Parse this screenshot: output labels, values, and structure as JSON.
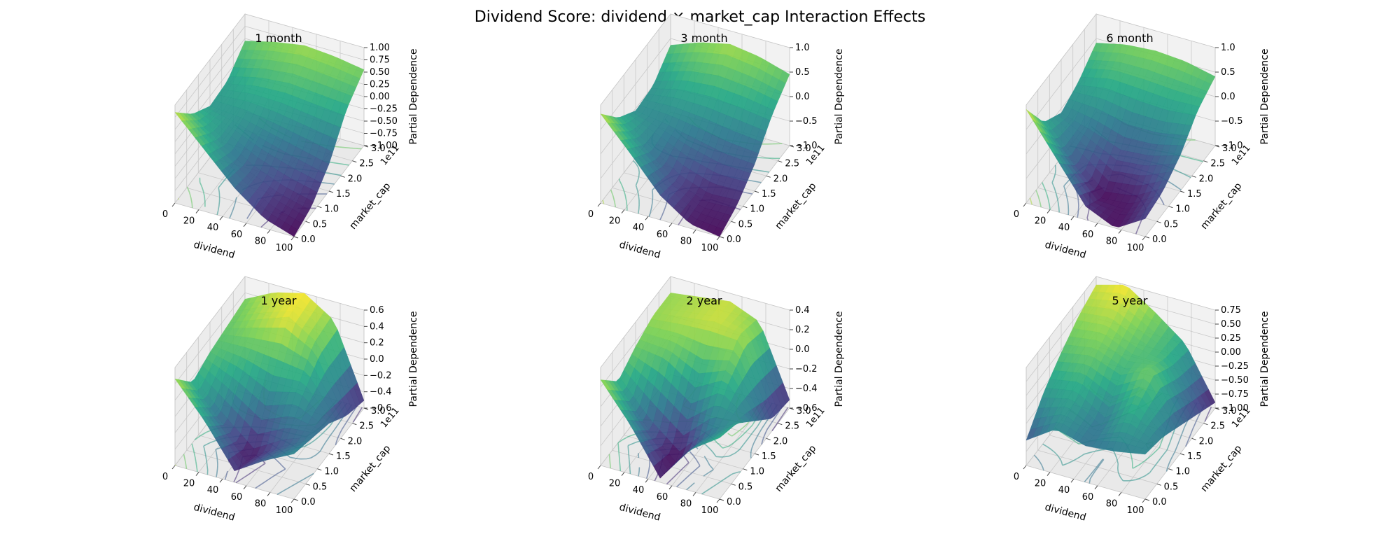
{
  "figure": {
    "title": "Dividend Score: dividend × market_cap Interaction Effects"
  },
  "colors": {
    "viridis": [
      "#440154",
      "#414487",
      "#2a788e",
      "#22a884",
      "#7ad151",
      "#fde725"
    ],
    "pane_wall": "#f2f2f2",
    "pane_floor": "#e9e9e9",
    "grid": "#c8c8c8"
  },
  "chart_data": [
    {
      "type": "surface3d",
      "title": "1 month",
      "xlabel": "dividend",
      "ylabel": "market_cap",
      "y_offset_label": "1e11",
      "zlabel": "Partial Dependence",
      "xlim": [
        0,
        100
      ],
      "ylim": [
        0,
        3.0
      ],
      "zlim": [
        -1.0,
        1.0
      ],
      "x_ticks": [
        "0",
        "20",
        "40",
        "60",
        "80",
        "100"
      ],
      "y_ticks": [
        "0.0",
        "0.5",
        "1.0",
        "1.5",
        "2.0",
        "2.5",
        "3.0"
      ],
      "z_ticks": [
        "−1.00",
        "−0.75",
        "−0.50",
        "−0.25",
        "0.00",
        "0.25",
        "0.50",
        "0.75",
        "1.00"
      ],
      "x": [
        0,
        25,
        50,
        75,
        100
      ],
      "y": [
        0.0,
        0.75,
        1.5,
        2.25,
        3.0
      ],
      "z": [
        [
          0.85,
          0.25,
          -0.35,
          -0.8,
          -1.0
        ],
        [
          0.35,
          -0.05,
          -0.45,
          -0.7,
          -0.85
        ],
        [
          0.05,
          0.0,
          -0.15,
          -0.3,
          -0.45
        ],
        [
          0.1,
          0.25,
          0.3,
          0.25,
          0.2
        ],
        [
          0.45,
          0.6,
          0.7,
          0.65,
          0.55
        ]
      ]
    },
    {
      "type": "surface3d",
      "title": "3 month",
      "xlabel": "dividend",
      "ylabel": "market_cap",
      "y_offset_label": "1e11",
      "zlabel": "Partial Dependence",
      "xlim": [
        0,
        100
      ],
      "ylim": [
        0,
        3.0
      ],
      "zlim": [
        -1.0,
        1.2
      ],
      "x_ticks": [
        "0",
        "20",
        "40",
        "60",
        "80",
        "100"
      ],
      "y_ticks": [
        "0.0",
        "0.5",
        "1.0",
        "1.5",
        "2.0",
        "2.5",
        "3.0"
      ],
      "z_ticks": [
        "−1.0",
        "−0.5",
        "0.0",
        "0.5",
        "1.0"
      ],
      "x": [
        0,
        25,
        50,
        75,
        100
      ],
      "y": [
        0.0,
        0.75,
        1.5,
        2.25,
        3.0
      ],
      "z": [
        [
          1.0,
          0.3,
          -0.45,
          -0.9,
          -1.0
        ],
        [
          0.4,
          -0.1,
          -0.6,
          -0.85,
          -0.8
        ],
        [
          0.05,
          -0.05,
          -0.2,
          -0.35,
          -0.4
        ],
        [
          0.1,
          0.3,
          0.35,
          0.3,
          0.2
        ],
        [
          0.5,
          0.75,
          0.9,
          0.8,
          0.6
        ]
      ]
    },
    {
      "type": "surface3d",
      "title": "6 month",
      "xlabel": "dividend",
      "ylabel": "market_cap",
      "y_offset_label": "1e11",
      "zlabel": "Partial Dependence",
      "xlim": [
        0,
        100
      ],
      "ylim": [
        0,
        3.0
      ],
      "zlim": [
        -1.0,
        1.2
      ],
      "x_ticks": [
        "0",
        "20",
        "40",
        "60",
        "80",
        "100"
      ],
      "y_ticks": [
        "0.0",
        "0.5",
        "1.0",
        "1.5",
        "2.0",
        "2.5",
        "3.0"
      ],
      "z_ticks": [
        "−1.0",
        "−0.5",
        "0.0",
        "0.5",
        "1.0"
      ],
      "x": [
        0,
        25,
        50,
        75,
        100
      ],
      "y": [
        0.0,
        0.75,
        1.5,
        2.25,
        3.0
      ],
      "z": [
        [
          1.1,
          0.2,
          -0.7,
          -1.0,
          -0.6
        ],
        [
          0.3,
          -0.4,
          -1.0,
          -0.9,
          -0.5
        ],
        [
          0.0,
          -0.2,
          -0.45,
          -0.4,
          -0.2
        ],
        [
          0.2,
          0.35,
          0.3,
          0.25,
          0.3
        ],
        [
          0.55,
          0.7,
          0.75,
          0.7,
          0.55
        ]
      ]
    },
    {
      "type": "surface3d",
      "title": "1 year",
      "xlabel": "dividend",
      "ylabel": "market_cap",
      "y_offset_label": "1e11",
      "zlabel": "Partial Dependence",
      "xlim": [
        0,
        100
      ],
      "ylim": [
        0,
        3.0
      ],
      "zlim": [
        -0.7,
        0.6
      ],
      "x_ticks": [
        "0",
        "20",
        "40",
        "60",
        "80",
        "100"
      ],
      "y_ticks": [
        "0.0",
        "0.5",
        "1.0",
        "1.5",
        "2.0",
        "2.5",
        "3.0"
      ],
      "z_ticks": [
        "−0.6",
        "−0.4",
        "−0.2",
        "0.0",
        "0.2",
        "0.4",
        "0.6"
      ],
      "x": [
        0,
        25,
        50,
        75,
        100
      ],
      "y": [
        0.0,
        0.75,
        1.5,
        2.25,
        3.0
      ],
      "z": [
        [
          0.45,
          0.0,
          -0.55,
          -0.3,
          -0.1
        ],
        [
          0.1,
          -0.3,
          -0.65,
          -0.4,
          -0.2
        ],
        [
          0.2,
          0.1,
          -0.1,
          0.0,
          -0.3
        ],
        [
          0.25,
          0.4,
          0.55,
          0.3,
          -0.5
        ],
        [
          0.3,
          0.5,
          0.6,
          0.35,
          -0.6
        ]
      ]
    },
    {
      "type": "surface3d",
      "title": "2 year",
      "xlabel": "dividend",
      "ylabel": "market_cap",
      "y_offset_label": "1e11",
      "zlabel": "Partial Dependence",
      "xlim": [
        0,
        100
      ],
      "ylim": [
        0,
        3.0
      ],
      "zlim": [
        -0.7,
        0.5
      ],
      "x_ticks": [
        "0",
        "20",
        "40",
        "60",
        "80",
        "100"
      ],
      "y_ticks": [
        "0.0",
        "0.5",
        "1.0",
        "1.5",
        "2.0",
        "2.5",
        "3.0"
      ],
      "z_ticks": [
        "−0.6",
        "−0.4",
        "−0.2",
        "0.0",
        "0.2",
        "0.4"
      ],
      "x": [
        0,
        25,
        50,
        75,
        100
      ],
      "y": [
        0.0,
        0.75,
        1.5,
        2.25,
        3.0
      ],
      "z": [
        [
          0.35,
          -0.1,
          -0.65,
          -0.2,
          0.05
        ],
        [
          0.05,
          -0.4,
          -0.7,
          -0.3,
          -0.05
        ],
        [
          0.2,
          0.15,
          -0.1,
          0.1,
          -0.3
        ],
        [
          0.3,
          0.35,
          0.4,
          0.35,
          -0.55
        ],
        [
          0.3,
          0.35,
          0.4,
          0.25,
          -0.6
        ]
      ]
    },
    {
      "type": "surface3d",
      "title": "5 year",
      "xlabel": "dividend",
      "ylabel": "market_cap",
      "y_offset_label": "1e11",
      "zlabel": "Partial Dependence",
      "xlim": [
        0,
        100
      ],
      "ylim": [
        0,
        3.0
      ],
      "zlim": [
        -1.0,
        0.75
      ],
      "x_ticks": [
        "0",
        "20",
        "40",
        "60",
        "80",
        "100"
      ],
      "y_ticks": [
        "0.0",
        "0.5",
        "1.0",
        "1.5",
        "2.0",
        "2.5",
        "3.0"
      ],
      "z_ticks": [
        "−1.00",
        "−0.75",
        "−0.50",
        "−0.25",
        "0.00",
        "0.25",
        "0.50",
        "0.75"
      ],
      "x": [
        0,
        25,
        50,
        75,
        100
      ],
      "y": [
        0.0,
        0.75,
        1.5,
        2.25,
        3.0
      ],
      "z": [
        [
          -0.55,
          -0.2,
          -0.35,
          -0.3,
          -0.2
        ],
        [
          -0.1,
          0.0,
          -0.35,
          0.1,
          -0.3
        ],
        [
          0.2,
          0.3,
          0.1,
          0.35,
          -0.5
        ],
        [
          0.45,
          0.5,
          0.25,
          0.1,
          -0.7
        ],
        [
          0.6,
          0.75,
          0.4,
          0.0,
          -0.9
        ]
      ]
    }
  ]
}
